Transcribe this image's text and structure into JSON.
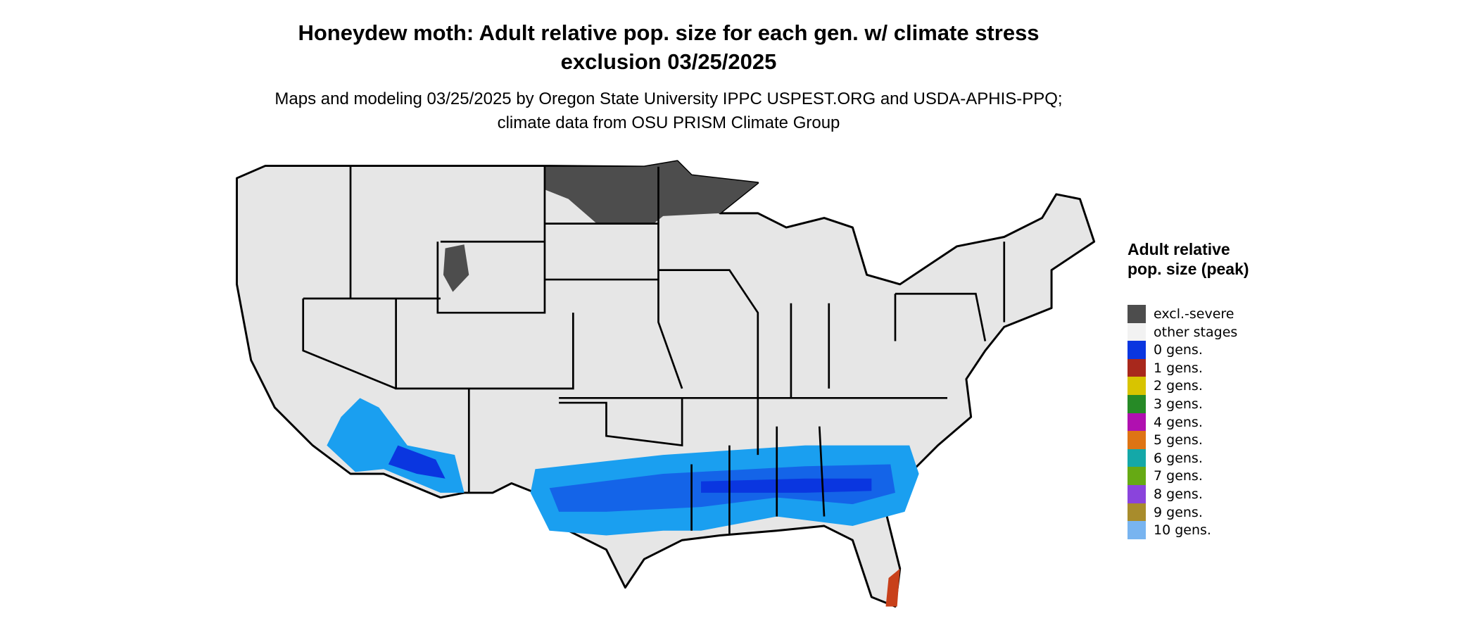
{
  "title": "Honeydew moth: Adult relative pop. size for each gen. w/ climate stress exclusion 03/25/2025",
  "subtitle": "Maps and modeling 03/25/2025 by Oregon State University IPPC USPEST.ORG and USDA-APHIS-PPQ; climate data from OSU PRISM Climate Group",
  "legend": {
    "title": "Adult relative pop. size (peak)",
    "items": [
      {
        "label": "excl.-severe",
        "color": "#4d4d4d"
      },
      {
        "label": "other stages",
        "color": "#f2f2f2"
      },
      {
        "label": "0 gens.",
        "color": "#0a36e0"
      },
      {
        "label": "1 gens.",
        "color": "#a8281c"
      },
      {
        "label": "2 gens.",
        "color": "#d8c400"
      },
      {
        "label": "3 gens.",
        "color": "#268a26"
      },
      {
        "label": "4 gens.",
        "color": "#b010b0"
      },
      {
        "label": "5 gens.",
        "color": "#de7414"
      },
      {
        "label": "6 gens.",
        "color": "#14a8a8"
      },
      {
        "label": "7 gens.",
        "color": "#66aa14"
      },
      {
        "label": "8 gens.",
        "color": "#8a44dc"
      },
      {
        "label": "9 gens.",
        "color": "#a88c2c"
      },
      {
        "label": "10 gens.",
        "color": "#78b4f0"
      }
    ]
  }
}
